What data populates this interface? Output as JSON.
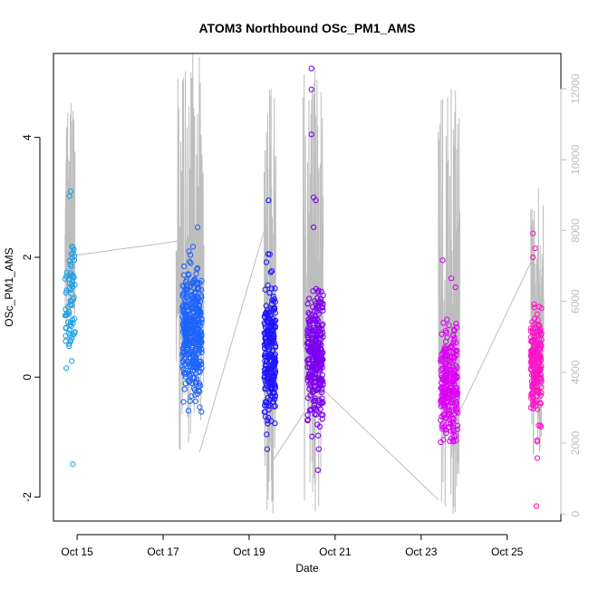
{
  "chart_data": {
    "type": "scatter",
    "title": "ATOM3 Northbound OSc_PM1_AMS",
    "xlabel": "Date",
    "ylabel": "OSc_PM1_AMS",
    "x_tick_labels": [
      "Oct 15",
      "Oct 17",
      "Oct 19",
      "Oct 21",
      "Oct 23",
      "Oct 25"
    ],
    "x_tick_days": [
      15,
      17,
      19,
      21,
      23,
      25
    ],
    "xlim": [
      14.45,
      26.25
    ],
    "ylim": [
      -2.4,
      5.4
    ],
    "y_ticks": [
      -2,
      0,
      2,
      4
    ],
    "y_tick_labels": [
      "-2",
      "0",
      "2",
      "4"
    ],
    "y2lim": [
      -200,
      13000
    ],
    "y2_ticks": [
      0,
      2000,
      4000,
      6000,
      8000,
      10000,
      12000
    ],
    "y2_tick_labels": [
      "0",
      "2000",
      "4000",
      "6000",
      "8000",
      "10000",
      "12000"
    ],
    "y2_color": "#bebebe",
    "grid": false,
    "point_clusters": [
      {
        "x_start": 14.72,
        "x_end": 14.95,
        "y_center": 1.3,
        "y_spread": 0.45,
        "n": 70,
        "color": "#1ea0e6",
        "extra": [
          [
            14.85,
            3.1
          ],
          [
            14.82,
            3.02
          ],
          [
            14.9,
            -1.45
          ],
          [
            14.75,
            0.15
          ],
          [
            14.88,
            2.18
          ]
        ]
      },
      {
        "x_start": 17.45,
        "x_end": 17.9,
        "y_center": 0.75,
        "y_spread": 0.5,
        "n": 380,
        "color": "#1e64ff",
        "extra": [
          [
            17.8,
            2.5
          ],
          [
            17.6,
            2.1
          ],
          [
            17.85,
            -0.5
          ],
          [
            17.5,
            -0.2
          ]
        ]
      },
      {
        "x_start": 19.35,
        "x_end": 19.62,
        "y_center": 0.4,
        "y_spread": 0.55,
        "n": 240,
        "color": "#1e14ff",
        "extra": [
          [
            19.45,
            2.95
          ],
          [
            19.42,
            -1.2
          ],
          [
            19.48,
            2.05
          ],
          [
            19.5,
            1.75
          ]
        ]
      },
      {
        "x_start": 20.35,
        "x_end": 20.72,
        "y_center": 0.35,
        "y_spread": 0.55,
        "n": 290,
        "color": "#7d00f0",
        "extra": [
          [
            20.45,
            5.15
          ],
          [
            20.45,
            4.8
          ],
          [
            20.45,
            4.05
          ],
          [
            20.5,
            3.0
          ],
          [
            20.55,
            2.95
          ],
          [
            20.6,
            -1.55
          ],
          [
            20.62,
            -1.2
          ],
          [
            20.5,
            2.5
          ]
        ]
      },
      {
        "x_start": 23.45,
        "x_end": 23.85,
        "y_center": -0.1,
        "y_spread": 0.5,
        "n": 240,
        "color": "#dc00f5",
        "extra": [
          [
            23.5,
            1.95
          ],
          [
            23.7,
            1.65
          ],
          [
            23.8,
            1.5
          ],
          [
            23.75,
            -1.05
          ]
        ]
      },
      {
        "x_start": 25.55,
        "x_end": 25.8,
        "y_center": 0.2,
        "y_spread": 0.45,
        "n": 200,
        "color": "#ff14c8",
        "extra": [
          [
            25.6,
            2.4
          ],
          [
            25.65,
            2.15
          ],
          [
            25.6,
            2.0
          ],
          [
            25.7,
            -1.35
          ],
          [
            25.68,
            -2.15
          ],
          [
            25.7,
            -1.05
          ]
        ]
      }
    ],
    "secondary_line": {
      "color": "#bebebe",
      "bursts": [
        {
          "x_start": 14.72,
          "x_end": 14.95,
          "y_min": 5200,
          "y_max": 11600
        },
        {
          "x_start": 17.3,
          "x_end": 17.95,
          "y_min": 1800,
          "y_max": 13000
        },
        {
          "x_start": 19.35,
          "x_end": 19.62,
          "y_min": 0,
          "y_max": 12000
        },
        {
          "x_start": 20.25,
          "x_end": 20.72,
          "y_min": 0,
          "y_max": 12600
        },
        {
          "x_start": 23.4,
          "x_end": 23.9,
          "y_min": 0,
          "y_max": 12000
        },
        {
          "x_start": 25.55,
          "x_end": 25.85,
          "y_min": 1600,
          "y_max": 9200
        }
      ],
      "connectors": [
        [
          [
            14.95,
            7300
          ],
          [
            17.35,
            7700
          ]
        ],
        [
          [
            17.85,
            1750
          ],
          [
            19.4,
            8200
          ]
        ],
        [
          [
            19.55,
            1500
          ],
          [
            20.3,
            2900
          ]
        ],
        [
          [
            20.65,
            3600
          ],
          [
            23.4,
            400
          ]
        ],
        [
          [
            23.9,
            2900
          ],
          [
            25.55,
            7100
          ]
        ]
      ]
    }
  }
}
